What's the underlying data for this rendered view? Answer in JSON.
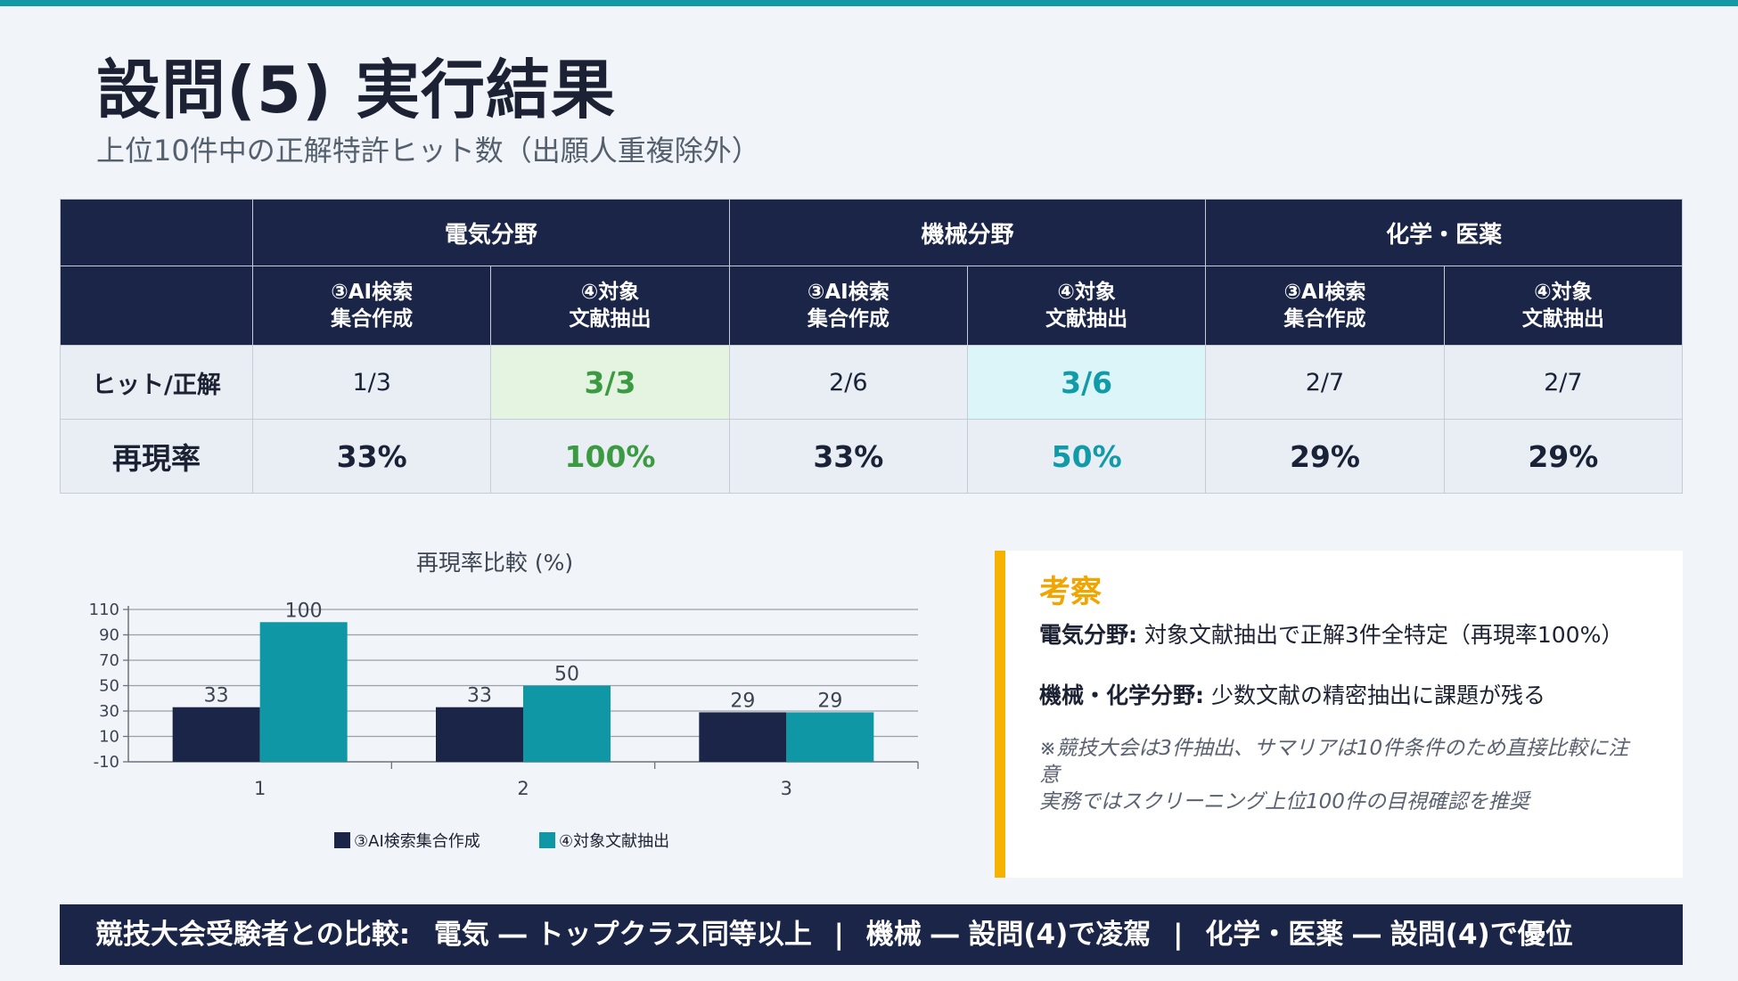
{
  "header": {
    "title": "設問(5) 実行結果",
    "subtitle": "上位10件中の正解特許ヒット数（出願人重複除外）"
  },
  "table": {
    "groups": [
      "電気分野",
      "機械分野",
      "化学・医薬"
    ],
    "method_a": [
      "③AI検索",
      "集合作成"
    ],
    "method_b": [
      "④対象",
      "文献抽出"
    ],
    "rows": [
      {
        "label": "ヒット/正解",
        "values": [
          "1/3",
          "3/3",
          "2/6",
          "3/6",
          "2/7",
          "2/7"
        ]
      },
      {
        "label": "再現率",
        "values": [
          "33%",
          "100%",
          "33%",
          "50%",
          "29%",
          "29%"
        ]
      }
    ],
    "colors": {
      "header_bg": "#1b2548",
      "highlight_green": "#3c9a43",
      "highlight_teal": "#119aa8"
    }
  },
  "chart_data": {
    "type": "bar",
    "title": "再現率比較 (%)",
    "categories": [
      "1",
      "2",
      "3"
    ],
    "series": [
      {
        "name": "③AI検索集合作成",
        "values": [
          33,
          33,
          29
        ],
        "color": "#1b2548"
      },
      {
        "name": "④対象文献抽出",
        "values": [
          100,
          50,
          29
        ],
        "color": "#0f97a5"
      }
    ],
    "yticks": [
      110,
      90,
      70,
      50,
      30,
      10,
      -10
    ],
    "ylim": [
      -10,
      110
    ],
    "grid": true,
    "legend": "bottom"
  },
  "panel": {
    "heading": "考察",
    "point1_bold": "電気分野:",
    "point1_text": " 対象文献抽出で正解3件全特定（再現率100%）",
    "point2_bold": "機械・化学分野:",
    "point2_text": " 少数文献の精密抽出に課題が残る",
    "note1": "※競技大会は3件抽出、サマリアは10件条件のため直接比較に注意",
    "note2": "実務ではスクリーニング上位100件の目視確認を推奨",
    "accent_color": "#f5b300"
  },
  "banner": {
    "lead": "競技大会受験者との比較:",
    "item1": "電気 ― トップクラス同等以上",
    "item2": "機械 ― 設問(4)で凌駕",
    "item3": "化学・医薬 ― 設問(4)で優位",
    "separator": "|"
  }
}
